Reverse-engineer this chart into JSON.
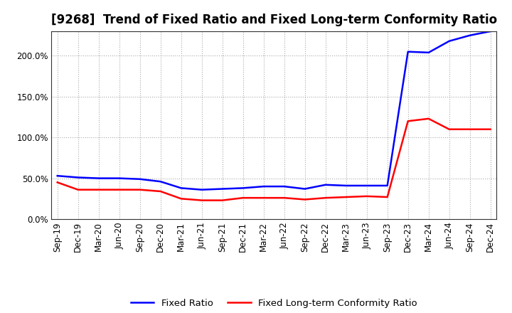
{
  "title": "[9268]  Trend of Fixed Ratio and Fixed Long-term Conformity Ratio",
  "x_labels": [
    "Sep-19",
    "Dec-19",
    "Mar-20",
    "Jun-20",
    "Sep-20",
    "Dec-20",
    "Mar-21",
    "Jun-21",
    "Sep-21",
    "Dec-21",
    "Mar-22",
    "Jun-22",
    "Sep-22",
    "Dec-22",
    "Mar-23",
    "Jun-23",
    "Sep-23",
    "Dec-23",
    "Mar-24",
    "Jun-24",
    "Sep-24",
    "Dec-24"
  ],
  "fixed_ratio": [
    53,
    51,
    50,
    50,
    49,
    46,
    38,
    36,
    37,
    38,
    40,
    40,
    37,
    42,
    41,
    41,
    41,
    205,
    204,
    218,
    225,
    230
  ],
  "fixed_lt_ratio": [
    45,
    36,
    36,
    36,
    36,
    34,
    25,
    23,
    23,
    26,
    26,
    26,
    24,
    26,
    27,
    28,
    27,
    120,
    123,
    110,
    110,
    110
  ],
  "fixed_ratio_color": "#0000ff",
  "fixed_lt_ratio_color": "#ff0000",
  "ylim": [
    0,
    230
  ],
  "yticks": [
    0,
    50,
    100,
    150,
    200
  ],
  "ytick_labels": [
    "0.0%",
    "50.0%",
    "100.0%",
    "150.0%",
    "200.0%"
  ],
  "bg_color": "#ffffff",
  "plot_bg_color": "#ffffff",
  "grid_color": "#aaaaaa",
  "legend_fixed_ratio": "Fixed Ratio",
  "legend_fixed_lt_ratio": "Fixed Long-term Conformity Ratio",
  "title_fontsize": 12,
  "tick_fontsize": 8.5,
  "legend_fontsize": 9.5,
  "line_width": 1.8
}
